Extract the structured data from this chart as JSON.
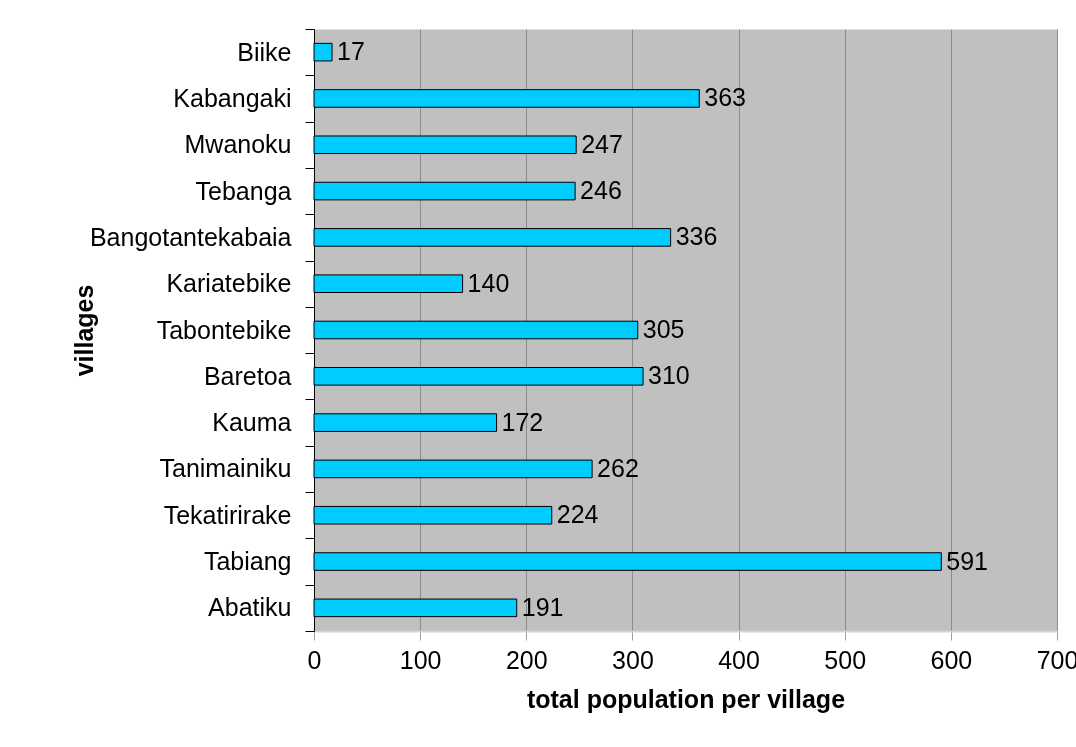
{
  "chart_data": {
    "type": "bar",
    "orientation": "horizontal",
    "xlabel": "total population per village",
    "ylabel": "villages",
    "categories": [
      "Biike",
      "Kabangaki",
      "Mwanoku",
      "Tebanga",
      "Bangotantekabaia",
      "Kariatebike",
      "Tabontebike",
      "Baretoa",
      "Kauma",
      "Tanimainiku",
      "Tekatirirake",
      "Tabiang",
      "Abatiku"
    ],
    "values": [
      17,
      363,
      247,
      246,
      336,
      140,
      305,
      310,
      172,
      262,
      224,
      591,
      191
    ],
    "color": "#00ccff",
    "xlim": [
      0,
      700
    ],
    "xticks": [
      0,
      100,
      200,
      300,
      400,
      500,
      600,
      700
    ],
    "grid": "x",
    "data_labels": true
  }
}
